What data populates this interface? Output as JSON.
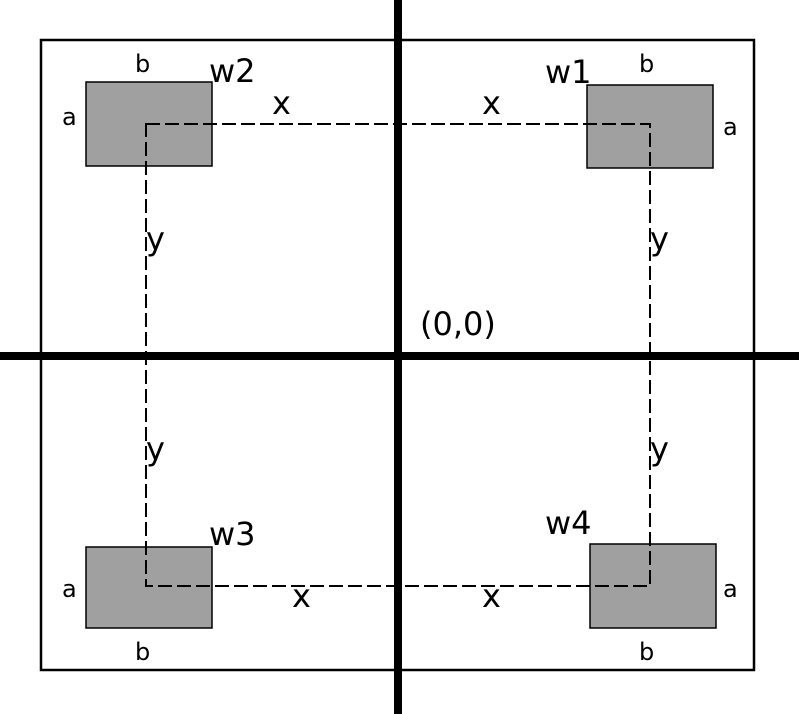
{
  "origin_label": "(0,0)",
  "colors": {
    "stroke": "#000000",
    "block_fill": "#a0a0a0",
    "background": "#ffffff"
  },
  "blocks": [
    {
      "id": "w1",
      "label": "w1",
      "side_label": "a",
      "width_label": "b"
    },
    {
      "id": "w2",
      "label": "w2",
      "side_label": "a",
      "width_label": "b"
    },
    {
      "id": "w3",
      "label": "w3",
      "side_label": "a",
      "width_label": "b"
    },
    {
      "id": "w4",
      "label": "w4",
      "side_label": "a",
      "width_label": "b"
    }
  ],
  "distances": {
    "x": "x",
    "y": "y"
  }
}
